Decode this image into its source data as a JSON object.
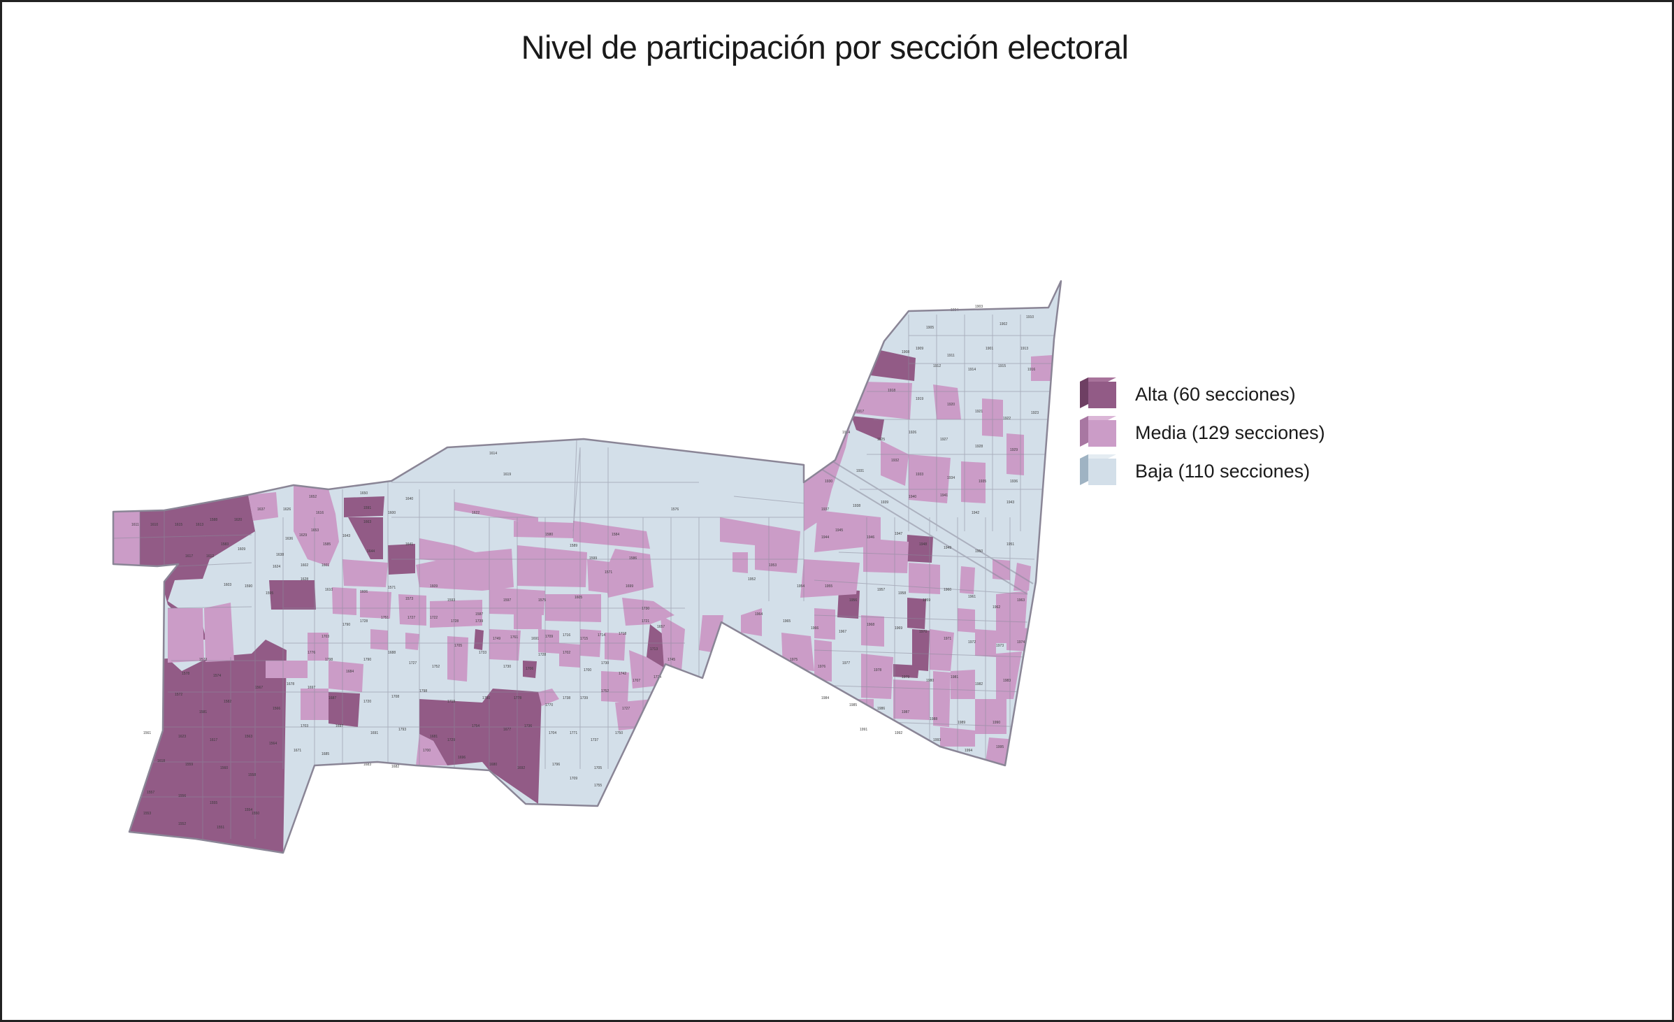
{
  "map": {
    "title": "Nivel de participación por sección electoral"
  },
  "legend": {
    "items": [
      {
        "label": "Alta (60 secciones)",
        "color": "#925b86",
        "side": "#6e3f63",
        "top": "#a8739b"
      },
      {
        "label": "Media (129 secciones)",
        "color": "#cb9cc7",
        "side": "#a877a2",
        "top": "#dbb6d7"
      },
      {
        "label": "Baja (110 secciones)",
        "color": "#d3dfe9",
        "side": "#9fb3c3",
        "top": "#e4ecf2"
      }
    ]
  },
  "colors": {
    "alta": "#925b86",
    "media": "#cb9cc7",
    "baja": "#d3dfe9",
    "boundary": "#7a6a80"
  }
}
